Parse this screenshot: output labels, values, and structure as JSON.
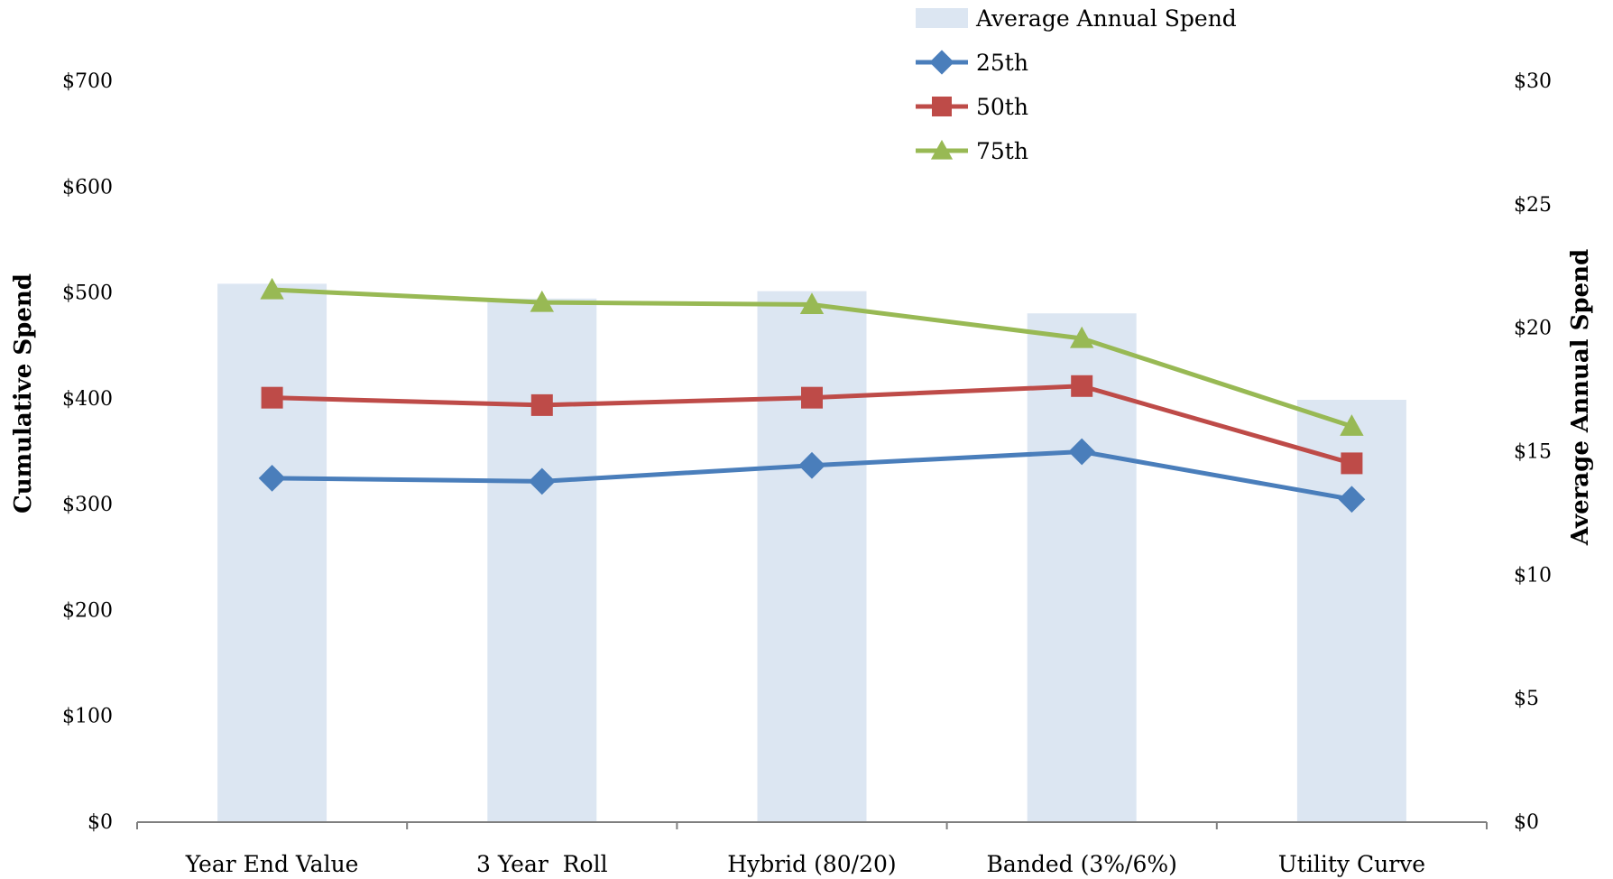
{
  "chart_data": {
    "type": "bar",
    "categories": [
      "Year End Value",
      "3 Year  Roll",
      "Hybrid (80/20)",
      "Banded (3%/6%)",
      "Utility Curve"
    ],
    "y_left": {
      "label": "Cumulative Spend",
      "range": [
        0,
        700
      ],
      "ticks": [
        0,
        100,
        200,
        300,
        400,
        500,
        600,
        700
      ],
      "tick_labels": [
        "$0",
        "$100",
        "$200",
        "$300",
        "$400",
        "$500",
        "$600",
        "$700"
      ]
    },
    "y_right": {
      "label": "Average Annual Spend",
      "range": [
        0,
        30
      ],
      "ticks": [
        0,
        5,
        10,
        15,
        20,
        25,
        30
      ],
      "tick_labels": [
        "$0",
        "$5",
        "$10",
        "$15",
        "$20",
        "$25",
        "$30"
      ]
    },
    "bars": {
      "name": "Average Annual Spend",
      "axis": "right",
      "color": "#dce6f2",
      "values": [
        21.8,
        21.2,
        21.5,
        20.6,
        17.1
      ]
    },
    "series": [
      {
        "name": "25th",
        "type": "line",
        "axis": "left",
        "color": "#4a7ebb",
        "marker": "diamond",
        "values": [
          325,
          322,
          337,
          350,
          305
        ]
      },
      {
        "name": "50th",
        "type": "line",
        "axis": "left",
        "color": "#be4b48",
        "marker": "square",
        "values": [
          401,
          394,
          401,
          412,
          339
        ]
      },
      {
        "name": "75th",
        "type": "line",
        "axis": "left",
        "color": "#98b954",
        "marker": "triangle",
        "values": [
          503,
          491,
          489,
          457,
          374
        ]
      }
    ],
    "legend": {
      "position": "top-right",
      "entries": [
        "Average Annual Spend",
        "25th",
        "50th",
        "75th"
      ]
    },
    "grid": false
  }
}
